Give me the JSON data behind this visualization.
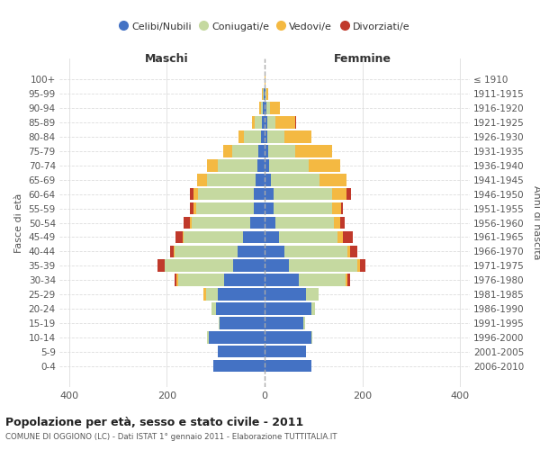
{
  "age_groups": [
    "0-4",
    "5-9",
    "10-14",
    "15-19",
    "20-24",
    "25-29",
    "30-34",
    "35-39",
    "40-44",
    "45-49",
    "50-54",
    "55-59",
    "60-64",
    "65-69",
    "70-74",
    "75-79",
    "80-84",
    "85-89",
    "90-94",
    "95-99",
    "100+"
  ],
  "birth_years": [
    "2006-2010",
    "2001-2005",
    "1996-2000",
    "1991-1995",
    "1986-1990",
    "1981-1985",
    "1976-1980",
    "1971-1975",
    "1966-1970",
    "1961-1965",
    "1956-1960",
    "1951-1955",
    "1946-1950",
    "1941-1945",
    "1936-1940",
    "1931-1935",
    "1926-1930",
    "1921-1925",
    "1916-1920",
    "1911-1915",
    "≤ 1910"
  ],
  "males": {
    "celibi": [
      105,
      95,
      115,
      92,
      100,
      95,
      82,
      65,
      55,
      45,
      30,
      22,
      22,
      18,
      15,
      12,
      8,
      5,
      3,
      2,
      0
    ],
    "coniugati": [
      0,
      0,
      2,
      2,
      8,
      25,
      95,
      140,
      130,
      120,
      120,
      118,
      115,
      100,
      80,
      55,
      35,
      15,
      5,
      2,
      0
    ],
    "vedovi": [
      0,
      0,
      0,
      0,
      1,
      5,
      3,
      0,
      1,
      2,
      3,
      5,
      8,
      20,
      22,
      18,
      10,
      5,
      3,
      1,
      0
    ],
    "divorziati": [
      0,
      0,
      0,
      0,
      0,
      0,
      5,
      15,
      8,
      15,
      12,
      8,
      8,
      0,
      0,
      0,
      0,
      1,
      0,
      0,
      0
    ]
  },
  "females": {
    "nubili": [
      95,
      85,
      95,
      80,
      95,
      85,
      70,
      50,
      40,
      30,
      22,
      18,
      18,
      12,
      10,
      8,
      5,
      5,
      3,
      1,
      0
    ],
    "coniugate": [
      0,
      0,
      2,
      2,
      8,
      25,
      95,
      140,
      130,
      120,
      120,
      120,
      120,
      100,
      80,
      55,
      35,
      18,
      8,
      2,
      0
    ],
    "vedove": [
      0,
      0,
      0,
      0,
      0,
      0,
      5,
      5,
      5,
      10,
      12,
      18,
      30,
      55,
      65,
      75,
      55,
      40,
      20,
      5,
      2
    ],
    "divorziate": [
      0,
      0,
      0,
      0,
      0,
      0,
      5,
      12,
      15,
      20,
      10,
      5,
      8,
      0,
      0,
      0,
      0,
      1,
      1,
      0,
      0
    ]
  },
  "colors": {
    "celibi_nubili": "#4472C4",
    "coniugati": "#C5D9A0",
    "vedovi": "#F4B942",
    "divorziati": "#C0392B"
  },
  "xlim": [
    -420,
    420
  ],
  "xticks": [
    -400,
    -200,
    0,
    200,
    400
  ],
  "xticklabels": [
    "400",
    "200",
    "0",
    "200",
    "400"
  ],
  "title": "Popolazione per età, sesso e stato civile - 2011",
  "subtitle": "COMUNE DI OGGIONO (LC) - Dati ISTAT 1° gennaio 2011 - Elaborazione TUTTITALIA.IT",
  "ylabel_left": "Fasce di età",
  "ylabel_right": "Anni di nascita",
  "label_maschi": "Maschi",
  "label_femmine": "Femmine",
  "legend_labels": [
    "Celibi/Nubili",
    "Coniugati/e",
    "Vedovi/e",
    "Divorziati/e"
  ],
  "background_color": "#ffffff",
  "grid_color": "#cccccc"
}
